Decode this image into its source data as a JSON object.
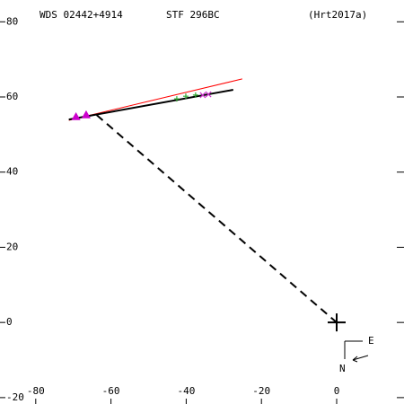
{
  "chart_data": {
    "type": "scatter",
    "title": "WDS 02442+4914",
    "subtitle": "STF 296BC",
    "reference": "(Hrt2017a)",
    "compass": {
      "east": "E",
      "north": "N"
    },
    "xlim": [
      -89.5,
      17.9
    ],
    "ylim": [
      -21.7,
      85.8
    ],
    "xticks": [
      -80,
      -60,
      -40,
      -20,
      0
    ],
    "yticks": [
      80,
      60,
      40,
      20,
      0,
      -20
    ],
    "lines": [
      {
        "color": "#ff0000",
        "style": "solid",
        "width": 1,
        "x": [
          -71.2,
          -25.1
        ],
        "y": [
          53.8,
          64.8
        ]
      },
      {
        "color": "#000000",
        "style": "solid",
        "width": 2,
        "x": [
          -71.2,
          -27.5
        ],
        "y": [
          54.0,
          61.9
        ]
      },
      {
        "color": "#000000",
        "style": "dashed",
        "width": 2,
        "x": [
          -63.8,
          0
        ],
        "y": [
          55.2,
          0
        ]
      }
    ],
    "series": [
      {
        "color": "#cc00cc",
        "marker": "triangle",
        "x": [
          -69.3,
          -66.6
        ],
        "y": [
          54.7,
          55.2
        ]
      },
      {
        "color": "#33aa33",
        "marker": "plus",
        "x": [
          -42.5,
          -40.1,
          -37.5
        ],
        "y": [
          59.5,
          60.2,
          60.5
        ]
      },
      {
        "color": "#cc33cc",
        "marker": "cross",
        "x": [
          -35.6,
          -34.1
        ],
        "y": [
          60.5,
          60.7
        ]
      },
      {
        "color": "#000000",
        "marker": "bigplus",
        "x": [
          0
        ],
        "y": [
          0
        ]
      }
    ]
  }
}
